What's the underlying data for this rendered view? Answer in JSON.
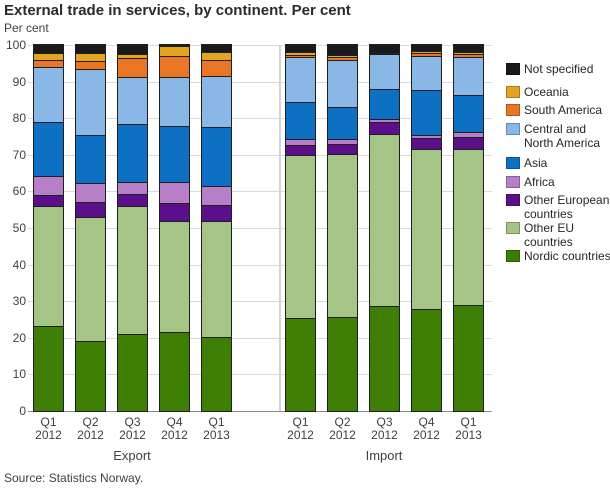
{
  "header": {
    "title": "External trade in services, by continent. Per cent",
    "units_label": "Per cent"
  },
  "footer": {
    "source": "Source: Statistics Norway."
  },
  "chart_data": {
    "type": "bar",
    "stacked": true,
    "orientation": "vertical",
    "title": "External trade in services, by continent. Per cent",
    "ylabel": "Per cent",
    "xlabel": "",
    "ylim": [
      0,
      100
    ],
    "ytick_step": 10,
    "grid": true,
    "legend_position": "right",
    "groups": [
      {
        "label": "Export",
        "categories": [
          "Q1 2012",
          "Q2 2012",
          "Q3 2012",
          "Q4 2012",
          "Q1 2013"
        ]
      },
      {
        "label": "Import",
        "categories": [
          "Q1 2012",
          "Q2 2012",
          "Q3 2012",
          "Q4 2012",
          "Q1 2013"
        ]
      }
    ],
    "series_note": "values are per cent; 10 columns = Export Q1 2012..Q1 2013 then Import Q1 2012..Q1 2013; stacking order bottom to top",
    "series": [
      {
        "name": "Nordic countries",
        "color": "#3f7e05",
        "values": [
          23.0,
          18.7,
          20.8,
          21.2,
          20.0,
          25.0,
          25.3,
          28.5,
          27.6,
          28.7
        ]
      },
      {
        "name": "Other EU countries",
        "color": "#a4c585",
        "values": [
          32.6,
          33.9,
          34.8,
          30.5,
          31.7,
          44.7,
          44.6,
          46.9,
          43.7,
          42.6
        ]
      },
      {
        "name": "Other European countries",
        "color": "#5c0f8a",
        "values": [
          3.0,
          4.1,
          3.4,
          4.9,
          4.3,
          2.7,
          2.8,
          3.4,
          2.9,
          3.2
        ]
      },
      {
        "name": "Africa",
        "color": "#b67fc8",
        "values": [
          5.2,
          5.3,
          3.2,
          5.6,
          5.3,
          1.5,
          1.3,
          0.9,
          0.9,
          1.4
        ]
      },
      {
        "name": "Asia",
        "color": "#0d70c2",
        "values": [
          14.8,
          13.2,
          15.8,
          15.3,
          15.9,
          10.3,
          8.7,
          8.0,
          12.4,
          10.2
        ]
      },
      {
        "name": "Central and North America",
        "color": "#8ab8e6",
        "values": [
          15.0,
          18.0,
          12.9,
          13.4,
          14.1,
          12.2,
          12.9,
          9.6,
          9.3,
          10.4
        ]
      },
      {
        "name": "South America",
        "color": "#e87625",
        "values": [
          2.1,
          2.2,
          5.3,
          5.9,
          4.4,
          0.7,
          0.8,
          0.3,
          0.7,
          0.8
        ]
      },
      {
        "name": "Oceania",
        "color": "#e3a51f",
        "values": [
          1.8,
          2.1,
          1.1,
          2.6,
          2.0,
          0.6,
          0.6,
          0.2,
          0.7,
          0.6
        ]
      },
      {
        "name": "Not specified",
        "color": "#1a1a1a",
        "values": [
          2.5,
          2.5,
          2.7,
          0.6,
          2.3,
          2.3,
          3.0,
          2.2,
          1.8,
          2.1
        ]
      }
    ],
    "legend_entries_top_to_bottom": [
      "Not specified",
      "Oceania",
      "South America",
      "Central and North America",
      "Asia",
      "Africa",
      "Other European countries",
      "Other EU countries",
      "Nordic countries"
    ]
  }
}
